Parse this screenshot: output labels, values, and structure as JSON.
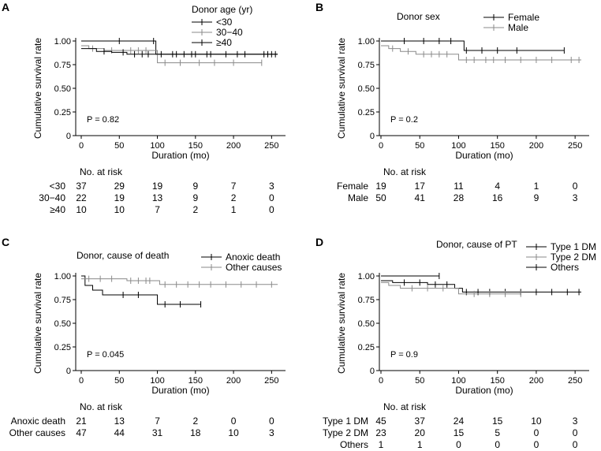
{
  "chart_data": [
    {
      "panel": "A",
      "type": "line",
      "title": "",
      "ylabel": "Cumulative survival rate",
      "xlabel": "Duration (mo)",
      "ylim": [
        0,
        1
      ],
      "xlim": [
        0,
        260
      ],
      "yticks": [
        "1.00",
        "0.75",
        "0.50",
        "0.25",
        "0"
      ],
      "xticks": [
        "0",
        "50",
        "100",
        "150",
        "200",
        "250"
      ],
      "legend_title": "Donor age (yr)",
      "legend_position": "top-right",
      "pvalue": "P = 0.82",
      "series": [
        {
          "name": "<30",
          "color": "#000000",
          "steps": [
            [
              0,
              1.0
            ],
            [
              96,
              1.0
            ],
            [
              98,
              0.86
            ],
            [
              258,
              0.86
            ]
          ],
          "censors": [
            50,
            95,
            120,
            135,
            150,
            165,
            190,
            215,
            240,
            250
          ]
        },
        {
          "name": "30−40",
          "color": "#8a8a8a",
          "steps": [
            [
              0,
              0.95
            ],
            [
              10,
              0.92
            ],
            [
              30,
              0.9
            ],
            [
              95,
              0.9
            ],
            [
              100,
              0.77
            ],
            [
              237,
              0.77
            ]
          ],
          "censors": [
            15,
            40,
            65,
            75,
            85,
            110,
            130,
            155,
            175,
            200,
            237
          ]
        },
        {
          "name": "≥40",
          "color": "#000000",
          "steps": [
            [
              0,
              0.92
            ],
            [
              20,
              0.89
            ],
            [
              40,
              0.88
            ],
            [
              60,
              0.86
            ],
            [
              258,
              0.86
            ]
          ],
          "censors": [
            30,
            55,
            70,
            80,
            88,
            105,
            125,
            145,
            170,
            205,
            245,
            255
          ]
        }
      ],
      "risk_table": {
        "header": "No. at risk",
        "rows": [
          {
            "label": "<30",
            "values": [
              "37",
              "29",
              "19",
              "9",
              "7",
              "3"
            ]
          },
          {
            "label": "30−40",
            "values": [
              "22",
              "19",
              "13",
              "9",
              "2",
              "0"
            ]
          },
          {
            "label": "≥40",
            "values": [
              "10",
              "10",
              "7",
              "2",
              "1",
              "0"
            ]
          }
        ]
      }
    },
    {
      "panel": "B",
      "type": "line",
      "title": "",
      "ylabel": "Cumulative survival rate",
      "xlabel": "Duration (mo)",
      "ylim": [
        0,
        1
      ],
      "xlim": [
        0,
        260
      ],
      "yticks": [
        "1.00",
        "0.75",
        "0.50",
        "0.25",
        "0"
      ],
      "xticks": [
        "0",
        "50",
        "100",
        "150",
        "200",
        "250"
      ],
      "legend_title": "Donor sex",
      "legend_position": "top-right",
      "pvalue": "P = 0.2",
      "series": [
        {
          "name": "Female",
          "color": "#000000",
          "steps": [
            [
              0,
              1.0
            ],
            [
              105,
              1.0
            ],
            [
              107,
              0.9
            ],
            [
              236,
              0.9
            ]
          ],
          "censors": [
            30,
            55,
            75,
            90,
            110,
            130,
            150,
            175,
            236
          ]
        },
        {
          "name": "Male",
          "color": "#8a8a8a",
          "steps": [
            [
              0,
              0.95
            ],
            [
              10,
              0.92
            ],
            [
              25,
              0.89
            ],
            [
              45,
              0.86
            ],
            [
              95,
              0.86
            ],
            [
              100,
              0.8
            ],
            [
              258,
              0.8
            ]
          ],
          "censors": [
            15,
            35,
            55,
            65,
            75,
            85,
            110,
            120,
            135,
            145,
            160,
            180,
            200,
            220,
            245,
            255
          ]
        }
      ],
      "risk_table": {
        "header": "No. at risk",
        "rows": [
          {
            "label": "Female",
            "values": [
              "19",
              "17",
              "11",
              "4",
              "1",
              "0"
            ]
          },
          {
            "label": "Male",
            "values": [
              "50",
              "41",
              "28",
              "16",
              "9",
              "3"
            ]
          }
        ]
      }
    },
    {
      "panel": "C",
      "type": "line",
      "title": "",
      "ylabel": "Cumulative survival rate",
      "xlabel": "Duration (mo)",
      "ylim": [
        0,
        1
      ],
      "xlim": [
        0,
        260
      ],
      "yticks": [
        "1.00",
        "0.75",
        "0.50",
        "0.25",
        "0"
      ],
      "xticks": [
        "0",
        "50",
        "100",
        "150",
        "200",
        "250"
      ],
      "legend_title": "Donor, cause of death",
      "legend_position": "top-right",
      "pvalue": "P = 0.045",
      "series": [
        {
          "name": "Anoxic death",
          "color": "#000000",
          "steps": [
            [
              0,
              1.0
            ],
            [
              5,
              0.9
            ],
            [
              15,
              0.85
            ],
            [
              28,
              0.8
            ],
            [
              96,
              0.8
            ],
            [
              100,
              0.7
            ],
            [
              157,
              0.7
            ]
          ],
          "censors": [
            55,
            75,
            110,
            130,
            157
          ]
        },
        {
          "name": "Other causes",
          "color": "#8a8a8a",
          "steps": [
            [
              0,
              0.97
            ],
            [
              55,
              0.97
            ],
            [
              60,
              0.95
            ],
            [
              100,
              0.95
            ],
            [
              103,
              0.91
            ],
            [
              258,
              0.91
            ]
          ],
          "censors": [
            10,
            25,
            40,
            65,
            75,
            85,
            90,
            110,
            125,
            140,
            155,
            170,
            190,
            210,
            230,
            250
          ]
        }
      ],
      "risk_table": {
        "header": "No. at risk",
        "rows": [
          {
            "label": "Anoxic death",
            "values": [
              "21",
              "13",
              "7",
              "2",
              "0",
              "0"
            ]
          },
          {
            "label": "Other causes",
            "values": [
              "47",
              "44",
              "31",
              "18",
              "10",
              "3"
            ]
          }
        ]
      }
    },
    {
      "panel": "D",
      "type": "line",
      "title": "",
      "ylabel": "Cumulative survival rate",
      "xlabel": "Duration (mo)",
      "ylim": [
        0,
        1
      ],
      "xlim": [
        0,
        260
      ],
      "yticks": [
        "1.00",
        "0.75",
        "0.50",
        "0.25",
        "0"
      ],
      "xticks": [
        "0",
        "50",
        "100",
        "150",
        "200",
        "250"
      ],
      "legend_title": "Donor, cause of PT",
      "legend_position": "top-right",
      "pvalue": "P = 0.9",
      "series": [
        {
          "name": "Type 1 DM",
          "color": "#000000",
          "steps": [
            [
              0,
              0.95
            ],
            [
              15,
              0.93
            ],
            [
              60,
              0.91
            ],
            [
              95,
              0.87
            ],
            [
              105,
              0.83
            ],
            [
              258,
              0.83
            ]
          ],
          "censors": [
            30,
            50,
            70,
            85,
            110,
            125,
            140,
            160,
            180,
            200,
            220,
            240,
            255
          ]
        },
        {
          "name": "Type 2 DM",
          "color": "#8a8a8a",
          "steps": [
            [
              0,
              0.93
            ],
            [
              10,
              0.9
            ],
            [
              25,
              0.87
            ],
            [
              100,
              0.81
            ],
            [
              180,
              0.81
            ]
          ],
          "censors": [
            40,
            60,
            80,
            120,
            140,
            160,
            180
          ]
        },
        {
          "name": "Others",
          "color": "#000000",
          "steps": [
            [
              0,
              1.0
            ],
            [
              75,
              1.0
            ]
          ],
          "censors": [
            75
          ]
        }
      ],
      "risk_table": {
        "header": "No. at risk",
        "rows": [
          {
            "label": "Type 1 DM",
            "values": [
              "45",
              "37",
              "24",
              "15",
              "10",
              "3"
            ]
          },
          {
            "label": "Type 2 DM",
            "values": [
              "23",
              "20",
              "15",
              "5",
              "0",
              "0"
            ]
          },
          {
            "label": "Others",
            "values": [
              "1",
              "1",
              "0",
              "0",
              "0",
              "0"
            ]
          }
        ]
      }
    }
  ]
}
